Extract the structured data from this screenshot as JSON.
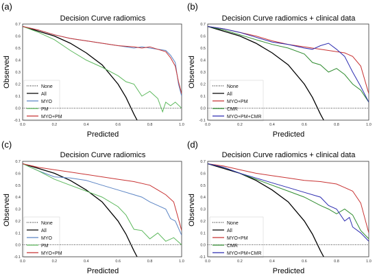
{
  "panels": [
    {
      "letter": "(a)",
      "title": "Decision Curve radiomics",
      "xlabel": "Predicted",
      "ylabel": "Observed",
      "legend": [
        "None",
        "All",
        "MYO",
        "PM",
        "MYO+PM"
      ]
    },
    {
      "letter": "(b)",
      "title": "Decision Curve radiomics + clinical data",
      "xlabel": "Predicted",
      "ylabel": "Observed",
      "legend": [
        "None",
        "All",
        "MYO+PM",
        "CMR",
        "MYO+PM+CMR"
      ]
    },
    {
      "letter": "(c)",
      "title": "Decision Curve radiomics",
      "xlabel": "Predicted",
      "ylabel": "Observed",
      "legend": [
        "None",
        "All",
        "MYO",
        "PM",
        "MYO+PM"
      ]
    },
    {
      "letter": "(d)",
      "title": "Decision Curve radiomics + clinical data",
      "xlabel": "Predicted",
      "ylabel": "Observed",
      "legend": [
        "None",
        "All",
        "MYO+PM",
        "CMR",
        "MYO+PM+CMR"
      ]
    }
  ],
  "colors": {
    "None": "#000000",
    "All": "#000000",
    "MYO": "#5b84c4",
    "PM": "#5cb85c",
    "MYO+PM": "#c83232",
    "CMR": "#2e8b2e",
    "MYO+PM+CMR": "#2b2bb0"
  },
  "chart_data": [
    {
      "type": "line",
      "title": "Decision Curve radiomics",
      "xlabel": "Predicted",
      "ylabel": "Observed",
      "xlim": [
        0,
        1
      ],
      "ylim": [
        -0.1,
        0.7
      ],
      "xticks": [
        "0.0",
        "0.2",
        "0.4",
        "0.6",
        "0.8",
        "1.0"
      ],
      "yticks": [
        "-0.1",
        "0.0",
        "0.1",
        "0.2",
        "0.3",
        "0.4",
        "0.5",
        "0.6",
        "0.7"
      ],
      "legend_position": "lower-left",
      "grid": false,
      "series": [
        {
          "name": "None",
          "style": "dotted",
          "x": [
            0,
            1
          ],
          "y": [
            0,
            0
          ]
        },
        {
          "name": "All",
          "x": [
            0,
            0.1,
            0.2,
            0.3,
            0.4,
            0.5,
            0.6,
            0.65,
            0.7,
            0.72
          ],
          "y": [
            0.68,
            0.64,
            0.6,
            0.54,
            0.46,
            0.36,
            0.2,
            0.09,
            -0.05,
            -0.1
          ]
        },
        {
          "name": "MYO",
          "x": [
            0,
            0.1,
            0.2,
            0.3,
            0.4,
            0.5,
            0.6,
            0.7,
            0.75,
            0.8,
            0.85,
            0.9,
            0.93,
            0.96,
            0.98,
            1.0
          ],
          "y": [
            0.68,
            0.65,
            0.61,
            0.58,
            0.56,
            0.54,
            0.52,
            0.5,
            0.51,
            0.5,
            0.49,
            0.48,
            0.44,
            0.38,
            0.2,
            0.1
          ]
        },
        {
          "name": "PM",
          "x": [
            0,
            0.1,
            0.2,
            0.3,
            0.4,
            0.5,
            0.6,
            0.65,
            0.7,
            0.75,
            0.8,
            0.85,
            0.88,
            0.9,
            0.93,
            0.96,
            1.0
          ],
          "y": [
            0.68,
            0.63,
            0.57,
            0.48,
            0.4,
            0.34,
            0.27,
            0.22,
            0.2,
            0.1,
            0.14,
            0.08,
            -0.03,
            0.05,
            0.02,
            0.05,
            0.0
          ]
        },
        {
          "name": "MYO+PM",
          "x": [
            0,
            0.1,
            0.2,
            0.3,
            0.4,
            0.5,
            0.6,
            0.7,
            0.75,
            0.8,
            0.85,
            0.9,
            0.93,
            0.96,
            0.98,
            1.0
          ],
          "y": [
            0.68,
            0.65,
            0.61,
            0.58,
            0.56,
            0.54,
            0.52,
            0.51,
            0.5,
            0.51,
            0.49,
            0.47,
            0.42,
            0.35,
            0.22,
            0.12
          ]
        }
      ]
    },
    {
      "type": "line",
      "title": "Decision Curve radiomics + clinical data",
      "xlabel": "Predicted",
      "ylabel": "Observed",
      "xlim": [
        0,
        1
      ],
      "ylim": [
        -0.1,
        0.7
      ],
      "xticks": [
        "0.0",
        "0.2",
        "0.4",
        "0.6",
        "0.8",
        "1.0"
      ],
      "yticks": [
        "-0.1",
        "0.0",
        "0.1",
        "0.2",
        "0.3",
        "0.4",
        "0.5",
        "0.6",
        "0.7"
      ],
      "legend_position": "lower-left",
      "grid": false,
      "series": [
        {
          "name": "None",
          "style": "dotted",
          "x": [
            0,
            1
          ],
          "y": [
            0,
            0
          ]
        },
        {
          "name": "All",
          "x": [
            0,
            0.1,
            0.2,
            0.3,
            0.4,
            0.5,
            0.6,
            0.65,
            0.7,
            0.72
          ],
          "y": [
            0.68,
            0.64,
            0.6,
            0.54,
            0.46,
            0.36,
            0.2,
            0.09,
            -0.05,
            -0.1
          ]
        },
        {
          "name": "MYO+PM",
          "x": [
            0,
            0.1,
            0.2,
            0.3,
            0.4,
            0.5,
            0.6,
            0.7,
            0.75,
            0.8,
            0.85,
            0.9,
            0.95,
            1.0
          ],
          "y": [
            0.68,
            0.66,
            0.63,
            0.6,
            0.56,
            0.53,
            0.51,
            0.49,
            0.48,
            0.47,
            0.46,
            0.43,
            0.35,
            0.12
          ]
        },
        {
          "name": "CMR",
          "x": [
            0,
            0.1,
            0.2,
            0.3,
            0.4,
            0.5,
            0.6,
            0.65,
            0.7,
            0.75,
            0.8,
            0.85,
            0.9,
            0.95,
            1.0
          ],
          "y": [
            0.68,
            0.65,
            0.61,
            0.57,
            0.53,
            0.5,
            0.45,
            0.38,
            0.36,
            0.3,
            0.33,
            0.28,
            0.2,
            0.15,
            0.05
          ]
        },
        {
          "name": "MYO+PM+CMR",
          "x": [
            0,
            0.1,
            0.2,
            0.3,
            0.4,
            0.5,
            0.6,
            0.65,
            0.7,
            0.75,
            0.8,
            0.85,
            0.9,
            0.95,
            1.0
          ],
          "y": [
            0.68,
            0.66,
            0.63,
            0.59,
            0.55,
            0.53,
            0.5,
            0.49,
            0.52,
            0.54,
            0.49,
            0.43,
            0.3,
            0.18,
            0.05
          ]
        }
      ]
    },
    {
      "type": "line",
      "title": "Decision Curve radiomics",
      "xlabel": "Predicted",
      "ylabel": "Observed",
      "xlim": [
        0,
        1
      ],
      "ylim": [
        -0.1,
        0.7
      ],
      "xticks": [
        "0.0",
        "0.2",
        "0.4",
        "0.6",
        "0.8",
        "1.0"
      ],
      "yticks": [
        "-0.1",
        "0.0",
        "0.1",
        "0.2",
        "0.3",
        "0.4",
        "0.5",
        "0.6",
        "0.7"
      ],
      "legend_position": "lower-left",
      "grid": false,
      "series": [
        {
          "name": "None",
          "style": "dotted",
          "x": [
            0,
            1
          ],
          "y": [
            0,
            0
          ]
        },
        {
          "name": "All",
          "x": [
            0,
            0.1,
            0.2,
            0.3,
            0.4,
            0.5,
            0.6,
            0.65,
            0.7,
            0.72
          ],
          "y": [
            0.68,
            0.64,
            0.6,
            0.54,
            0.46,
            0.36,
            0.2,
            0.09,
            -0.05,
            -0.1
          ]
        },
        {
          "name": "MYO",
          "x": [
            0,
            0.1,
            0.2,
            0.3,
            0.4,
            0.5,
            0.6,
            0.7,
            0.75,
            0.8,
            0.85,
            0.9,
            0.93,
            0.96,
            1.0
          ],
          "y": [
            0.68,
            0.62,
            0.57,
            0.56,
            0.54,
            0.5,
            0.46,
            0.42,
            0.4,
            0.36,
            0.33,
            0.3,
            0.22,
            0.2,
            0.08
          ]
        },
        {
          "name": "PM",
          "x": [
            0,
            0.1,
            0.2,
            0.3,
            0.4,
            0.5,
            0.6,
            0.65,
            0.7,
            0.75,
            0.8,
            0.85,
            0.9,
            0.95,
            1.0
          ],
          "y": [
            0.68,
            0.62,
            0.55,
            0.5,
            0.45,
            0.4,
            0.32,
            0.25,
            0.13,
            0.12,
            0.05,
            0.1,
            0.03,
            0.06,
            0.0
          ]
        },
        {
          "name": "MYO+PM",
          "x": [
            0,
            0.1,
            0.2,
            0.3,
            0.4,
            0.5,
            0.6,
            0.7,
            0.8,
            0.85,
            0.9,
            0.95,
            1.0
          ],
          "y": [
            0.68,
            0.65,
            0.63,
            0.61,
            0.59,
            0.57,
            0.55,
            0.53,
            0.5,
            0.46,
            0.42,
            0.36,
            0.12
          ]
        }
      ]
    },
    {
      "type": "line",
      "title": "Decision Curve radiomics + clinical data",
      "xlabel": "Predicted",
      "ylabel": "Observed",
      "xlim": [
        0,
        1
      ],
      "ylim": [
        -0.1,
        0.7
      ],
      "xticks": [
        "0.0",
        "0.2",
        "0.4",
        "0.6",
        "0.8",
        "1.0"
      ],
      "yticks": [
        "-0.1",
        "0.0",
        "0.1",
        "0.2",
        "0.3",
        "0.4",
        "0.5",
        "0.6",
        "0.7"
      ],
      "legend_position": "lower-left",
      "grid": false,
      "series": [
        {
          "name": "None",
          "style": "dotted",
          "x": [
            0,
            1
          ],
          "y": [
            0,
            0
          ]
        },
        {
          "name": "All",
          "x": [
            0,
            0.1,
            0.2,
            0.3,
            0.4,
            0.5,
            0.6,
            0.65,
            0.7,
            0.72
          ],
          "y": [
            0.68,
            0.64,
            0.6,
            0.54,
            0.46,
            0.36,
            0.2,
            0.09,
            -0.05,
            -0.1
          ]
        },
        {
          "name": "MYO+PM",
          "x": [
            0,
            0.1,
            0.2,
            0.3,
            0.4,
            0.5,
            0.6,
            0.7,
            0.8,
            0.85,
            0.9,
            0.95,
            1.0
          ],
          "y": [
            0.68,
            0.66,
            0.63,
            0.6,
            0.58,
            0.56,
            0.54,
            0.53,
            0.51,
            0.48,
            0.45,
            0.35,
            0.1
          ]
        },
        {
          "name": "CMR",
          "x": [
            0,
            0.1,
            0.2,
            0.3,
            0.4,
            0.5,
            0.6,
            0.7,
            0.75,
            0.8,
            0.85,
            0.9,
            0.95,
            1.0
          ],
          "y": [
            0.68,
            0.65,
            0.6,
            0.55,
            0.5,
            0.45,
            0.4,
            0.33,
            0.3,
            0.26,
            0.3,
            0.25,
            0.12,
            0.05
          ]
        },
        {
          "name": "MYO+PM+CMR",
          "x": [
            0,
            0.1,
            0.2,
            0.3,
            0.4,
            0.5,
            0.6,
            0.7,
            0.75,
            0.8,
            0.85,
            0.88,
            0.9,
            0.95,
            1.0
          ],
          "y": [
            0.68,
            0.65,
            0.6,
            0.56,
            0.52,
            0.48,
            0.44,
            0.4,
            0.33,
            0.3,
            0.2,
            0.23,
            0.15,
            0.1,
            0.03
          ]
        }
      ]
    }
  ]
}
